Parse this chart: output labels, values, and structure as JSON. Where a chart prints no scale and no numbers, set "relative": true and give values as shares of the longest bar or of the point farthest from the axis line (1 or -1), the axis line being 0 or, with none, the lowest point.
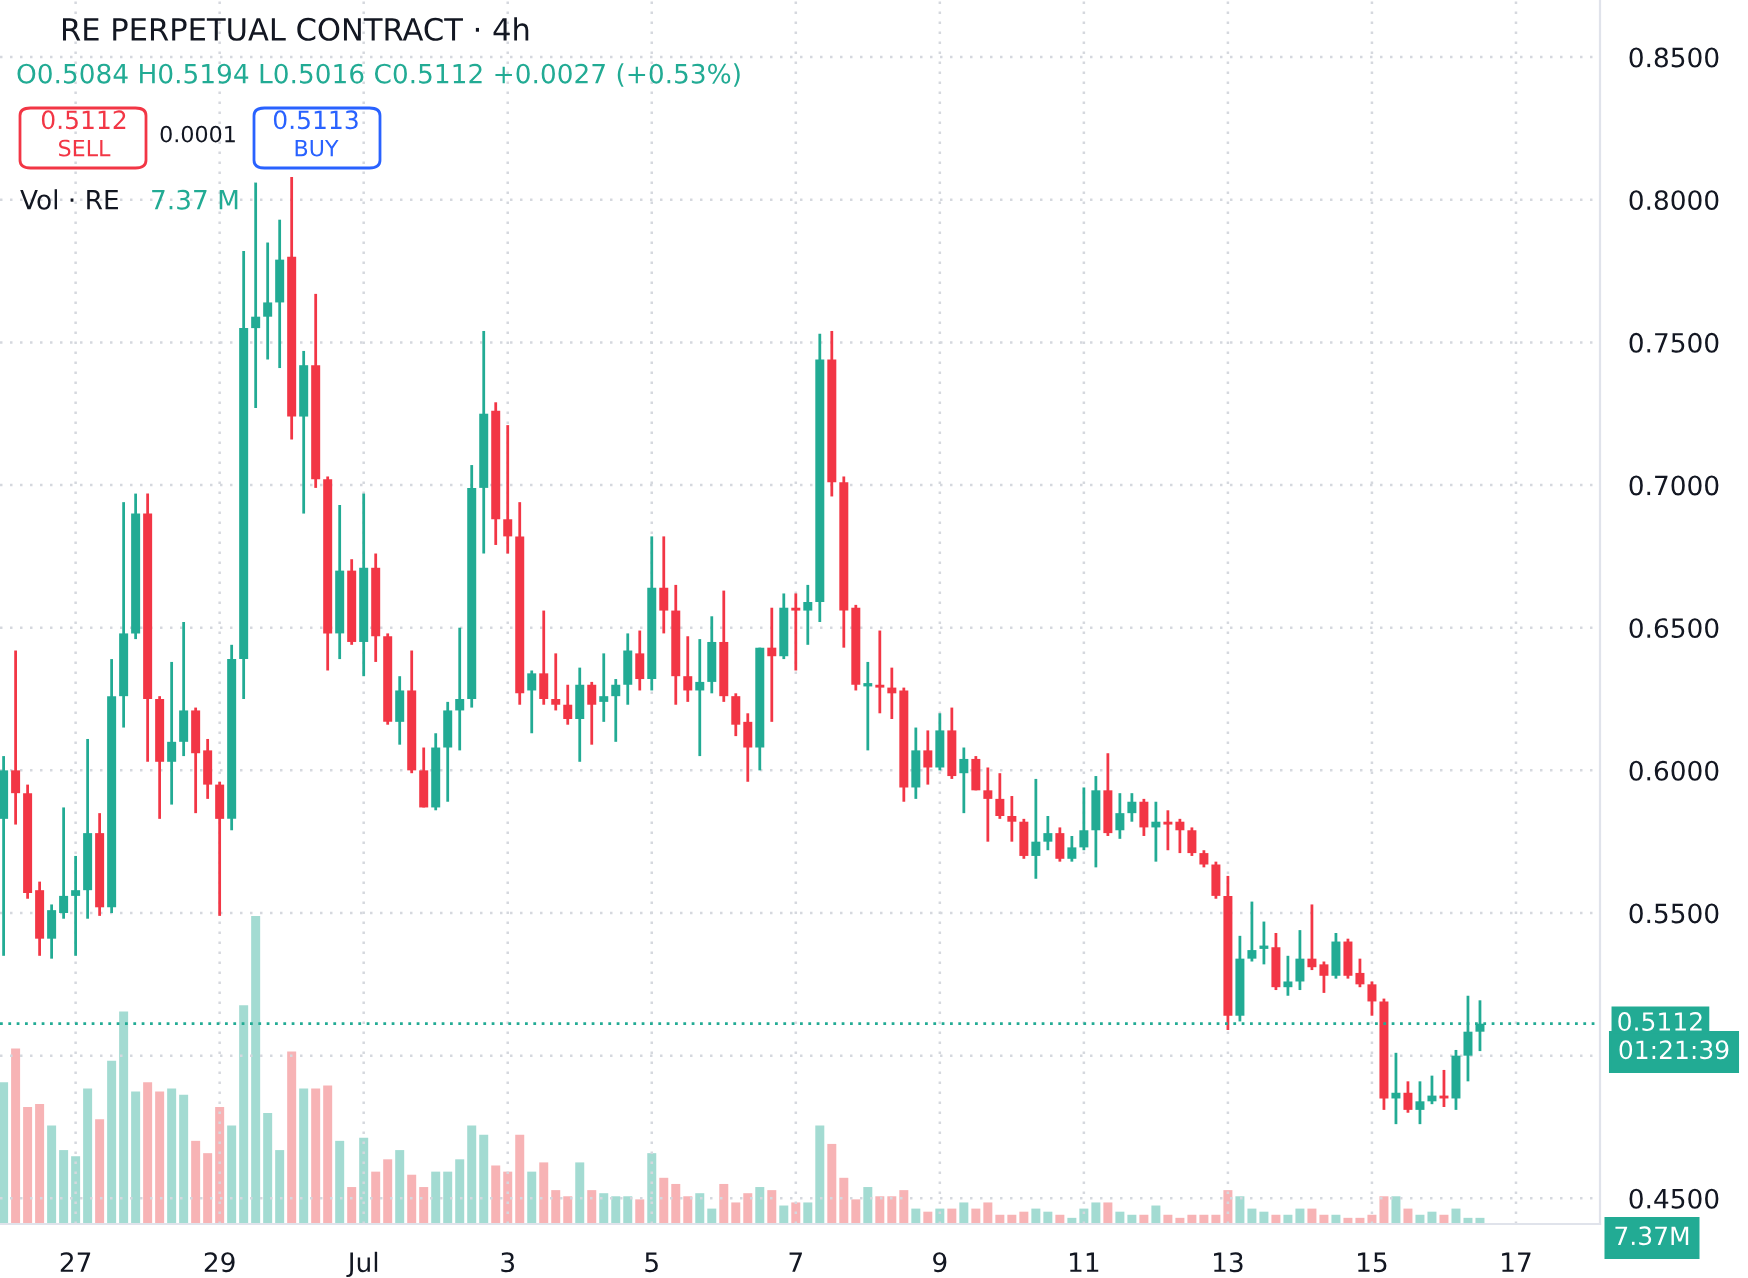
{
  "chart_data": [
    {
      "type": "candlestick",
      "title": "RE PERPETUAL CONTRACT · 4h",
      "subtitle": "O0.5084 H0.5194 L0.5016 C0.5112 +0.0027 (+0.53%)",
      "categories": [
        null,
        null,
        null,
        null,
        null,
        null,
        "27",
        null,
        null,
        null,
        null,
        null,
        null,
        null,
        null,
        null,
        null,
        null,
        "29",
        null,
        null,
        null,
        null,
        null,
        null,
        null,
        null,
        null,
        null,
        null,
        "Jul",
        null,
        null,
        null,
        null,
        null,
        null,
        null,
        null,
        null,
        null,
        null,
        "3",
        null,
        null,
        null,
        null,
        null,
        null,
        null,
        null,
        null,
        null,
        null,
        "5",
        null,
        null,
        null,
        null,
        null,
        null,
        null,
        null,
        null,
        null,
        null,
        "7",
        null,
        null,
        null,
        null,
        null,
        null,
        null,
        null,
        null,
        null,
        null,
        "9",
        null,
        null,
        null,
        null,
        null,
        null,
        null,
        null,
        null,
        null,
        null,
        "11",
        null,
        null,
        null,
        null,
        null,
        null,
        null,
        null,
        null,
        null,
        null,
        "13",
        null,
        null,
        null,
        null,
        null,
        null,
        null,
        null,
        null,
        null,
        null,
        "15",
        null,
        null,
        null,
        null,
        null,
        null,
        null,
        null,
        null,
        null,
        null,
        "17"
      ],
      "ohlc": [
        [
          0.583,
          0.605,
          0.535,
          0.6
        ],
        [
          0.6,
          0.642,
          0.581,
          0.592
        ],
        [
          0.592,
          0.595,
          0.555,
          0.557
        ],
        [
          0.558,
          0.561,
          0.535,
          0.541
        ],
        [
          0.541,
          0.553,
          0.534,
          0.551
        ],
        [
          0.55,
          0.587,
          0.548,
          0.556
        ],
        [
          0.556,
          0.57,
          0.535,
          0.558
        ],
        [
          0.558,
          0.611,
          0.548,
          0.578
        ],
        [
          0.578,
          0.585,
          0.549,
          0.552
        ],
        [
          0.552,
          0.639,
          0.55,
          0.626
        ],
        [
          0.626,
          0.694,
          0.615,
          0.648
        ],
        [
          0.648,
          0.697,
          0.646,
          0.69
        ],
        [
          0.69,
          0.697,
          0.603,
          0.625
        ],
        [
          0.625,
          0.626,
          0.583,
          0.603
        ],
        [
          0.603,
          0.638,
          0.588,
          0.61
        ],
        [
          0.61,
          0.652,
          0.605,
          0.621
        ],
        [
          0.621,
          0.622,
          0.585,
          0.606
        ],
        [
          0.607,
          0.611,
          0.59,
          0.595
        ],
        [
          0.595,
          0.596,
          0.549,
          0.583
        ],
        [
          0.583,
          0.644,
          0.579,
          0.639
        ],
        [
          0.639,
          0.782,
          0.625,
          0.755
        ],
        [
          0.755,
          0.806,
          0.727,
          0.759
        ],
        [
          0.759,
          0.785,
          0.744,
          0.764
        ],
        [
          0.764,
          0.793,
          0.741,
          0.779
        ],
        [
          0.78,
          0.808,
          0.716,
          0.724
        ],
        [
          0.724,
          0.747,
          0.69,
          0.742
        ],
        [
          0.742,
          0.767,
          0.699,
          0.702
        ],
        [
          0.702,
          0.703,
          0.635,
          0.648
        ],
        [
          0.648,
          0.693,
          0.639,
          0.67
        ],
        [
          0.67,
          0.674,
          0.644,
          0.645
        ],
        [
          0.645,
          0.697,
          0.633,
          0.671
        ],
        [
          0.671,
          0.676,
          0.638,
          0.647
        ],
        [
          0.647,
          0.648,
          0.616,
          0.617
        ],
        [
          0.617,
          0.633,
          0.609,
          0.628
        ],
        [
          0.628,
          0.642,
          0.599,
          0.6
        ],
        [
          0.6,
          0.608,
          0.587,
          0.587
        ],
        [
          0.587,
          0.613,
          0.586,
          0.608
        ],
        [
          0.608,
          0.624,
          0.589,
          0.621
        ],
        [
          0.621,
          0.65,
          0.607,
          0.625
        ],
        [
          0.625,
          0.707,
          0.622,
          0.699
        ],
        [
          0.699,
          0.754,
          0.676,
          0.725
        ],
        [
          0.726,
          0.729,
          0.679,
          0.688
        ],
        [
          0.688,
          0.721,
          0.676,
          0.682
        ],
        [
          0.682,
          0.694,
          0.623,
          0.627
        ],
        [
          0.628,
          0.635,
          0.613,
          0.634
        ],
        [
          0.634,
          0.656,
          0.623,
          0.625
        ],
        [
          0.625,
          0.641,
          0.621,
          0.623
        ],
        [
          0.623,
          0.63,
          0.616,
          0.618
        ],
        [
          0.618,
          0.636,
          0.603,
          0.63
        ],
        [
          0.63,
          0.631,
          0.609,
          0.623
        ],
        [
          0.624,
          0.641,
          0.617,
          0.626
        ],
        [
          0.626,
          0.632,
          0.61,
          0.63
        ],
        [
          0.63,
          0.648,
          0.623,
          0.642
        ],
        [
          0.641,
          0.649,
          0.628,
          0.632
        ],
        [
          0.632,
          0.682,
          0.628,
          0.664
        ],
        [
          0.664,
          0.682,
          0.648,
          0.656
        ],
        [
          0.656,
          0.665,
          0.623,
          0.633
        ],
        [
          0.633,
          0.647,
          0.624,
          0.628
        ],
        [
          0.628,
          0.646,
          0.605,
          0.631
        ],
        [
          0.631,
          0.654,
          0.627,
          0.645
        ],
        [
          0.645,
          0.663,
          0.624,
          0.626
        ],
        [
          0.626,
          0.627,
          0.612,
          0.616
        ],
        [
          0.617,
          0.62,
          0.596,
          0.608
        ],
        [
          0.608,
          0.643,
          0.6,
          0.643
        ],
        [
          0.643,
          0.657,
          0.617,
          0.64
        ],
        [
          0.64,
          0.662,
          0.639,
          0.657
        ],
        [
          0.657,
          0.662,
          0.635,
          0.656
        ],
        [
          0.656,
          0.665,
          0.644,
          0.659
        ],
        [
          0.659,
          0.753,
          0.652,
          0.744
        ],
        [
          0.744,
          0.754,
          0.696,
          0.701
        ],
        [
          0.701,
          0.703,
          0.643,
          0.656
        ],
        [
          0.657,
          0.658,
          0.628,
          0.63
        ],
        [
          0.63,
          0.638,
          0.607,
          0.63
        ],
        [
          0.63,
          0.649,
          0.62,
          0.629
        ],
        [
          0.629,
          0.636,
          0.618,
          0.627
        ],
        [
          0.628,
          0.629,
          0.589,
          0.594
        ],
        [
          0.594,
          0.615,
          0.59,
          0.607
        ],
        [
          0.607,
          0.614,
          0.595,
          0.601
        ],
        [
          0.601,
          0.62,
          0.6,
          0.614
        ],
        [
          0.614,
          0.622,
          0.597,
          0.598
        ],
        [
          0.599,
          0.608,
          0.585,
          0.604
        ],
        [
          0.604,
          0.605,
          0.593,
          0.593
        ],
        [
          0.593,
          0.601,
          0.575,
          0.59
        ],
        [
          0.59,
          0.599,
          0.583,
          0.584
        ],
        [
          0.584,
          0.591,
          0.575,
          0.582
        ],
        [
          0.582,
          0.583,
          0.569,
          0.57
        ],
        [
          0.57,
          0.597,
          0.562,
          0.575
        ],
        [
          0.575,
          0.584,
          0.572,
          0.578
        ],
        [
          0.578,
          0.58,
          0.568,
          0.569
        ],
        [
          0.569,
          0.577,
          0.568,
          0.573
        ],
        [
          0.573,
          0.594,
          0.572,
          0.579
        ],
        [
          0.579,
          0.598,
          0.566,
          0.593
        ],
        [
          0.593,
          0.606,
          0.577,
          0.578
        ],
        [
          0.579,
          0.592,
          0.576,
          0.585
        ],
        [
          0.585,
          0.592,
          0.582,
          0.589
        ],
        [
          0.589,
          0.59,
          0.577,
          0.58
        ],
        [
          0.58,
          0.589,
          0.568,
          0.582
        ],
        [
          0.582,
          0.586,
          0.572,
          0.581
        ],
        [
          0.582,
          0.583,
          0.571,
          0.579
        ],
        [
          0.579,
          0.58,
          0.57,
          0.571
        ],
        [
          0.571,
          0.572,
          0.566,
          0.567
        ],
        [
          0.567,
          0.568,
          0.555,
          0.556
        ],
        [
          0.556,
          0.563,
          0.509,
          0.514
        ],
        [
          0.514,
          0.542,
          0.512,
          0.534
        ],
        [
          0.534,
          0.554,
          0.533,
          0.537
        ],
        [
          0.538,
          0.547,
          0.532,
          0.538
        ],
        [
          0.538,
          0.543,
          0.523,
          0.524
        ],
        [
          0.524,
          0.535,
          0.521,
          0.526
        ],
        [
          0.526,
          0.544,
          0.523,
          0.534
        ],
        [
          0.534,
          0.553,
          0.53,
          0.531
        ],
        [
          0.532,
          0.533,
          0.522,
          0.528
        ],
        [
          0.528,
          0.543,
          0.527,
          0.54
        ],
        [
          0.54,
          0.541,
          0.527,
          0.528
        ],
        [
          0.529,
          0.534,
          0.524,
          0.525
        ],
        [
          0.525,
          0.526,
          0.514,
          0.519
        ],
        [
          0.519,
          0.52,
          0.481,
          0.485
        ],
        [
          0.485,
          0.501,
          0.476,
          0.487
        ],
        [
          0.487,
          0.491,
          0.48,
          0.481
        ],
        [
          0.481,
          0.491,
          0.476,
          0.484
        ],
        [
          0.484,
          0.493,
          0.483,
          0.486
        ],
        [
          0.486,
          0.495,
          0.482,
          0.485
        ],
        [
          0.485,
          0.502,
          0.481,
          0.5
        ],
        [
          0.5,
          0.521,
          0.491,
          0.5084
        ],
        [
          0.5084,
          0.5194,
          0.5016,
          0.5112
        ],
        null,
        null,
        null
      ],
      "colors": [
        "#22ab94",
        "#f23645",
        "#f23645",
        "#f23645",
        "#22ab94",
        "#22ab94",
        "#22ab94",
        "#22ab94",
        "#f23645",
        "#22ab94",
        "#22ab94",
        "#22ab94",
        "#f23645",
        "#f23645",
        "#22ab94",
        "#22ab94",
        "#f23645",
        "#f23645",
        "#f23645",
        "#22ab94",
        "#22ab94",
        "#22ab94",
        "#22ab94",
        "#22ab94",
        "#f23645",
        "#22ab94",
        "#f23645",
        "#f23645",
        "#22ab94",
        "#f23645",
        "#22ab94",
        "#f23645",
        "#f23645",
        "#22ab94",
        "#f23645",
        "#f23645",
        "#22ab94",
        "#22ab94",
        "#22ab94",
        "#22ab94",
        "#22ab94",
        "#f23645",
        "#f23645",
        "#f23645",
        "#22ab94",
        "#f23645",
        "#f23645",
        "#f23645",
        "#22ab94",
        "#f23645",
        "#22ab94",
        "#22ab94",
        "#22ab94",
        "#f23645",
        "#22ab94",
        "#f23645",
        "#f23645",
        "#f23645",
        "#22ab94",
        "#22ab94",
        "#f23645",
        "#f23645",
        "#f23645",
        "#22ab94",
        "#f23645",
        "#22ab94",
        "#f23645",
        "#22ab94",
        "#22ab94",
        "#f23645",
        "#f23645",
        "#f23645",
        "#22ab94",
        "#f23645",
        "#f23645",
        "#f23645",
        "#22ab94",
        "#f23645",
        "#22ab94",
        "#f23645",
        "#22ab94",
        "#f23645",
        "#f23645",
        "#f23645",
        "#f23645",
        "#f23645",
        "#22ab94",
        "#22ab94",
        "#f23645",
        "#22ab94",
        "#22ab94",
        "#22ab94",
        "#f23645",
        "#22ab94",
        "#22ab94",
        "#f23645",
        "#22ab94",
        "#f23645",
        "#f23645",
        "#f23645",
        "#f23645",
        "#f23645",
        "#f23645",
        "#22ab94",
        "#22ab94",
        "#22ab94",
        "#f23645",
        "#22ab94",
        "#22ab94",
        "#f23645",
        "#f23645",
        "#22ab94",
        "#f23645",
        "#f23645",
        "#f23645",
        "#f23645",
        "#22ab94",
        "#f23645",
        "#22ab94",
        "#22ab94",
        "#f23645",
        "#22ab94",
        "#22ab94",
        "#22ab94",
        null,
        null,
        null
      ],
      "ylim": [
        0.441,
        0.87
      ],
      "yticks": [
        {
          "value": 0.45,
          "label": "0.4500"
        },
        {
          "value": 0.5,
          "label": null
        },
        {
          "value": 0.55,
          "label": "0.5500"
        },
        {
          "value": 0.6,
          "label": "0.6000"
        },
        {
          "value": 0.65,
          "label": "0.6500"
        },
        {
          "value": 0.7,
          "label": "0.7000"
        },
        {
          "value": 0.75,
          "label": "0.7500"
        },
        {
          "value": 0.8,
          "label": "0.8000"
        },
        {
          "value": 0.85,
          "label": "0.8500"
        }
      ],
      "grid": true,
      "ref_lines": [
        {
          "axis": "y",
          "value": 0.5112,
          "label": "0.5112",
          "color": "#22ab94",
          "line_style": "dotted"
        }
      ],
      "annotations": [
        "0.5112",
        "SELL",
        "0.0001",
        "0.5113",
        "BUY",
        "Vol · RE",
        "7.37 M",
        "01:21:39",
        "7.37M"
      ]
    },
    {
      "type": "bar",
      "relative": true,
      "categories": [
        null,
        null,
        null,
        null,
        null,
        null,
        null,
        null,
        null,
        null,
        null,
        null,
        null,
        null,
        null,
        null,
        null,
        null,
        null,
        null,
        null,
        null,
        null,
        null,
        null,
        null,
        null,
        null,
        null,
        null,
        null,
        null,
        null,
        null,
        null,
        null,
        null,
        null,
        null,
        null,
        null,
        null,
        null,
        null,
        null,
        null,
        null,
        null,
        null,
        null,
        null,
        null,
        null,
        null,
        null,
        null,
        null,
        null,
        null,
        null,
        null,
        null,
        null,
        null,
        null,
        null,
        null,
        null,
        null,
        null,
        null,
        null,
        null,
        null,
        null,
        null,
        null,
        null,
        null,
        null,
        null,
        null,
        null,
        null,
        null,
        null,
        null,
        null,
        null,
        null,
        null,
        null,
        null,
        null,
        null,
        null,
        null,
        null,
        null,
        null,
        null,
        null,
        null,
        null,
        null,
        null,
        null,
        null,
        null,
        null,
        null,
        null,
        null,
        null,
        null,
        null,
        null,
        null,
        null,
        null,
        null,
        null,
        null,
        null,
        null,
        null,
        null
      ],
      "values": [
        0.46,
        0.57,
        0.38,
        0.39,
        0.32,
        0.24,
        0.22,
        0.44,
        0.34,
        0.53,
        0.69,
        0.43,
        0.46,
        0.43,
        0.44,
        0.42,
        0.27,
        0.23,
        0.38,
        0.32,
        0.71,
        1,
        0.36,
        0.24,
        0.56,
        0.44,
        0.44,
        0.45,
        0.27,
        0.12,
        0.28,
        0.17,
        0.21,
        0.24,
        0.16,
        0.12,
        0.17,
        0.17,
        0.21,
        0.32,
        0.29,
        0.19,
        0.17,
        0.29,
        0.17,
        0.2,
        0.11,
        0.09,
        0.2,
        0.11,
        0.1,
        0.09,
        0.09,
        0.08,
        0.23,
        0.15,
        0.13,
        0.09,
        0.1,
        0.05,
        0.13,
        0.07,
        0.1,
        0.12,
        0.11,
        0.06,
        0.07,
        0.07,
        0.32,
        0.26,
        0.15,
        0.08,
        0.12,
        0.09,
        0.09,
        0.11,
        0.05,
        0.04,
        0.05,
        0.05,
        0.07,
        0.05,
        0.07,
        0.03,
        0.03,
        0.04,
        0.05,
        0.04,
        0.03,
        0.02,
        0.05,
        0.07,
        0.07,
        0.04,
        0.03,
        0.03,
        0.06,
        0.03,
        0.02,
        0.03,
        0.03,
        0.03,
        0.11,
        0.09,
        0.05,
        0.04,
        0.03,
        0.03,
        0.05,
        0.05,
        0.03,
        0.03,
        0.02,
        0.02,
        0.03,
        0.09,
        0.09,
        0.05,
        0.03,
        0.04,
        0.03,
        0.05,
        0.02,
        0.02,
        null,
        null,
        null
      ],
      "colors": [
        "#a3dbd2",
        "#f7b3b5",
        "#f7b3b5",
        "#f7b3b5",
        "#a3dbd2",
        "#a3dbd2",
        "#a3dbd2",
        "#a3dbd2",
        "#f7b3b5",
        "#a3dbd2",
        "#a3dbd2",
        "#a3dbd2",
        "#f7b3b5",
        "#f7b3b5",
        "#a3dbd2",
        "#a3dbd2",
        "#f7b3b5",
        "#f7b3b5",
        "#f7b3b5",
        "#a3dbd2",
        "#a3dbd2",
        "#a3dbd2",
        "#a3dbd2",
        "#a3dbd2",
        "#f7b3b5",
        "#a3dbd2",
        "#f7b3b5",
        "#f7b3b5",
        "#a3dbd2",
        "#f7b3b5",
        "#a3dbd2",
        "#f7b3b5",
        "#f7b3b5",
        "#a3dbd2",
        "#f7b3b5",
        "#f7b3b5",
        "#a3dbd2",
        "#a3dbd2",
        "#a3dbd2",
        "#a3dbd2",
        "#a3dbd2",
        "#f7b3b5",
        "#f7b3b5",
        "#f7b3b5",
        "#a3dbd2",
        "#f7b3b5",
        "#f7b3b5",
        "#f7b3b5",
        "#a3dbd2",
        "#f7b3b5",
        "#a3dbd2",
        "#a3dbd2",
        "#a3dbd2",
        "#f7b3b5",
        "#a3dbd2",
        "#f7b3b5",
        "#f7b3b5",
        "#f7b3b5",
        "#a3dbd2",
        "#a3dbd2",
        "#f7b3b5",
        "#f7b3b5",
        "#f7b3b5",
        "#a3dbd2",
        "#f7b3b5",
        "#a3dbd2",
        "#f7b3b5",
        "#a3dbd2",
        "#a3dbd2",
        "#f7b3b5",
        "#f7b3b5",
        "#f7b3b5",
        "#a3dbd2",
        "#f7b3b5",
        "#f7b3b5",
        "#f7b3b5",
        "#a3dbd2",
        "#f7b3b5",
        "#a3dbd2",
        "#f7b3b5",
        "#a3dbd2",
        "#f7b3b5",
        "#f7b3b5",
        "#f7b3b5",
        "#f7b3b5",
        "#f7b3b5",
        "#a3dbd2",
        "#a3dbd2",
        "#f7b3b5",
        "#a3dbd2",
        "#a3dbd2",
        "#a3dbd2",
        "#f7b3b5",
        "#a3dbd2",
        "#a3dbd2",
        "#f7b3b5",
        "#a3dbd2",
        "#f7b3b5",
        "#f7b3b5",
        "#f7b3b5",
        "#f7b3b5",
        "#f7b3b5",
        "#f7b3b5",
        "#a3dbd2",
        "#a3dbd2",
        "#a3dbd2",
        "#f7b3b5",
        "#a3dbd2",
        "#a3dbd2",
        "#f7b3b5",
        "#f7b3b5",
        "#a3dbd2",
        "#f7b3b5",
        "#f7b3b5",
        "#f7b3b5",
        "#f7b3b5",
        "#a3dbd2",
        "#f7b3b5",
        "#a3dbd2",
        "#a3dbd2",
        "#f7b3b5",
        "#a3dbd2",
        "#a3dbd2",
        "#a3dbd2",
        null,
        null,
        null
      ]
    }
  ]
}
